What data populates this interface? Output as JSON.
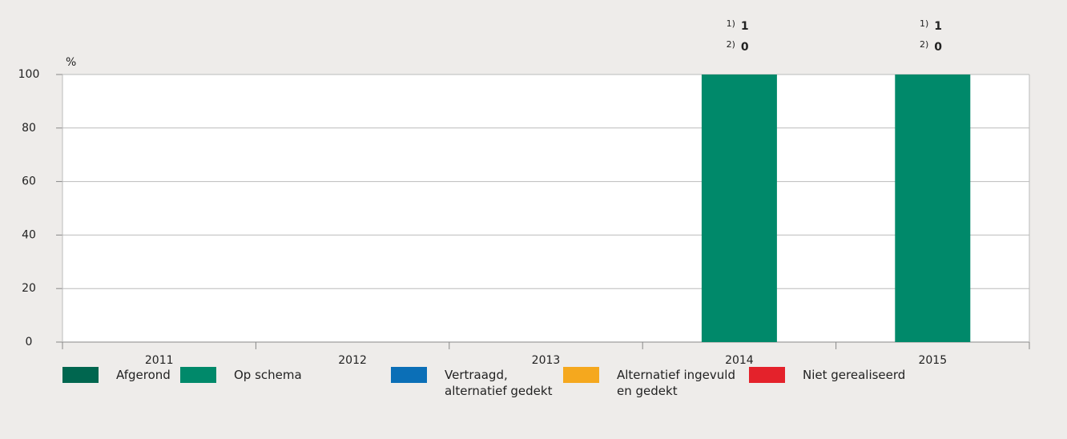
{
  "chart_data": {
    "type": "stacked-bar",
    "y_label": "%",
    "categories": [
      "2011",
      "2012",
      "2013",
      "2014",
      "2015"
    ],
    "series": [
      {
        "name": "Afgerond",
        "color": "#00664f",
        "values": [
          0,
          0,
          0,
          0,
          0
        ]
      },
      {
        "name": "Op schema",
        "color": "#00896a",
        "values": [
          0,
          0,
          0,
          100,
          100
        ]
      },
      {
        "name": "Vertraagd, alternatief gedekt",
        "color": "#0b6fb7",
        "values": [
          0,
          0,
          0,
          0,
          0
        ]
      },
      {
        "name": "Alternatief ingevuld en gedekt",
        "color": "#f5a81e",
        "values": [
          0,
          0,
          0,
          0,
          0
        ]
      },
      {
        "name": "Niet gerealiseerd",
        "color": "#e4222b",
        "values": [
          0,
          0,
          0,
          0,
          0
        ]
      }
    ],
    "annotations": [
      null,
      null,
      null,
      {
        "labels": [
          "1)",
          "2)"
        ],
        "values": [
          1,
          0
        ]
      },
      {
        "labels": [
          "1)",
          "2)"
        ],
        "values": [
          1,
          0
        ]
      }
    ],
    "ylim": [
      0,
      100
    ],
    "yticks": [
      0,
      20,
      40,
      60,
      80,
      100
    ],
    "grid": true
  }
}
